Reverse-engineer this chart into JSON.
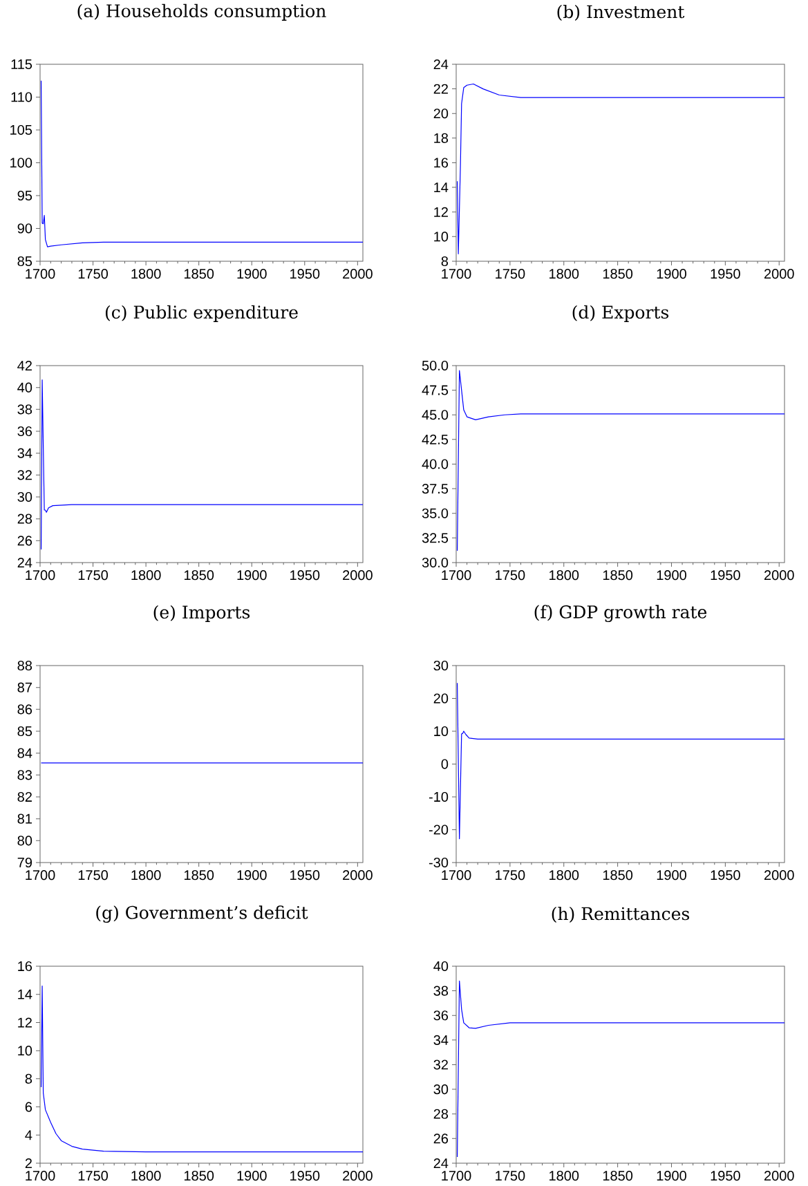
{
  "chart_data": [
    {
      "type": "line",
      "title": "(a) Households consumption",
      "color": "#0000ff",
      "x": [
        1701,
        1702,
        1703,
        1704,
        1705,
        1707,
        1710,
        1720,
        1740,
        1760,
        2005
      ],
      "values": [
        112.5,
        90.8,
        90.7,
        92,
        88.3,
        87.2,
        87.3,
        87.5,
        87.8,
        87.9,
        87.9
      ],
      "xlim": [
        1700,
        2005
      ],
      "xticks": [
        1700,
        1750,
        1800,
        1850,
        1900,
        1950,
        2000
      ],
      "ylim": [
        85,
        115
      ],
      "yticks": [
        85,
        90,
        95,
        100,
        105,
        110,
        115
      ]
    },
    {
      "type": "line",
      "title": "(b) Investment",
      "color": "#0000ff",
      "x": [
        1701,
        1702,
        1704,
        1705,
        1707,
        1710,
        1716,
        1725,
        1740,
        1760,
        2005
      ],
      "values": [
        14.5,
        8.6,
        16,
        20.8,
        22.1,
        22.3,
        22.4,
        22.0,
        21.5,
        21.3,
        21.3
      ],
      "xlim": [
        1700,
        2005
      ],
      "xticks": [
        1700,
        1750,
        1800,
        1850,
        1900,
        1950,
        2000
      ],
      "ylim": [
        8,
        24
      ],
      "yticks": [
        8,
        10,
        12,
        14,
        16,
        18,
        20,
        22,
        24
      ]
    },
    {
      "type": "line",
      "title": "(c) Public expenditure",
      "color": "#0000ff",
      "x": [
        1701,
        1702,
        1704,
        1705,
        1706,
        1708,
        1712,
        1730,
        2005
      ],
      "values": [
        25.2,
        40.7,
        28.8,
        28.8,
        28.6,
        29.0,
        29.2,
        29.3,
        29.3
      ],
      "xlim": [
        1700,
        2005
      ],
      "xticks": [
        1700,
        1750,
        1800,
        1850,
        1900,
        1950,
        2000
      ],
      "ylim": [
        24,
        42
      ],
      "yticks": [
        24,
        26,
        28,
        30,
        32,
        34,
        36,
        38,
        40,
        42
      ]
    },
    {
      "type": "line",
      "title": "(d) Exports",
      "color": "#0000ff",
      "x": [
        1701,
        1703,
        1705,
        1707,
        1710,
        1718,
        1730,
        1745,
        1760,
        2005
      ],
      "values": [
        31.2,
        49.5,
        47.5,
        45.5,
        44.8,
        44.5,
        44.8,
        45.0,
        45.1,
        45.1
      ],
      "xlim": [
        1700,
        2005
      ],
      "xticks": [
        1700,
        1750,
        1800,
        1850,
        1900,
        1950,
        2000
      ],
      "ylim": [
        30,
        50
      ],
      "yticks": [
        {
          "value": 30,
          "label": "30.0"
        },
        {
          "value": 32.5,
          "label": "32.5"
        },
        {
          "value": 35,
          "label": "35.0"
        },
        {
          "value": 37.5,
          "label": "37.5"
        },
        {
          "value": 40,
          "label": "40.0"
        },
        {
          "value": 42.5,
          "label": "42.5"
        },
        {
          "value": 45,
          "label": "45.0"
        },
        {
          "value": 47.5,
          "label": "47.5"
        },
        {
          "value": 50,
          "label": "50.0"
        }
      ]
    },
    {
      "type": "line",
      "title": "(e) Imports",
      "color": "#0000ff",
      "x": [
        1701,
        2005
      ],
      "values": [
        83.55,
        83.55
      ],
      "xlim": [
        1700,
        2005
      ],
      "xticks": [
        1700,
        1750,
        1800,
        1850,
        1900,
        1950,
        2000
      ],
      "ylim": [
        79,
        88
      ],
      "yticks": [
        79,
        80,
        81,
        82,
        83,
        84,
        85,
        86,
        87,
        88
      ]
    },
    {
      "type": "line",
      "title": "(f) GDP growth rate",
      "color": "#0000ff",
      "x": [
        1701,
        1703,
        1705,
        1706,
        1707,
        1709,
        1712,
        1720,
        1750,
        2005
      ],
      "values": [
        24.7,
        -22.8,
        9.2,
        9.3,
        10.0,
        9.0,
        7.9,
        7.6,
        7.6,
        7.6
      ],
      "xlim": [
        1700,
        2005
      ],
      "xticks": [
        1700,
        1750,
        1800,
        1850,
        1900,
        1950,
        2000
      ],
      "ylim": [
        -30,
        30
      ],
      "yticks": [
        -30,
        -20,
        -10,
        0,
        10,
        20,
        30
      ]
    },
    {
      "type": "line",
      "title": "(g) Government’s deficit",
      "color": "#0000ff",
      "x": [
        1701,
        1702,
        1703,
        1705,
        1710,
        1715,
        1720,
        1730,
        1740,
        1760,
        1800,
        2005
      ],
      "values": [
        7.4,
        14.6,
        7.0,
        5.8,
        4.9,
        4.1,
        3.6,
        3.2,
        3.0,
        2.85,
        2.8,
        2.8
      ],
      "xlim": [
        1700,
        2005
      ],
      "xticks": [
        1700,
        1750,
        1800,
        1850,
        1900,
        1950,
        2000
      ],
      "ylim": [
        2,
        16
      ],
      "yticks": [
        2,
        4,
        6,
        8,
        10,
        12,
        14,
        16
      ]
    },
    {
      "type": "line",
      "title": "(h) Remittances",
      "color": "#0000ff",
      "x": [
        1701,
        1703,
        1705,
        1707,
        1712,
        1718,
        1730,
        1750,
        2005
      ],
      "values": [
        24.5,
        38.8,
        36.5,
        35.4,
        35.0,
        34.95,
        35.2,
        35.4,
        35.4
      ],
      "xlim": [
        1700,
        2005
      ],
      "xticks": [
        1700,
        1750,
        1800,
        1850,
        1900,
        1950,
        2000
      ],
      "ylim": [
        24,
        40
      ],
      "yticks": [
        24,
        26,
        28,
        30,
        32,
        34,
        36,
        38,
        40
      ]
    }
  ]
}
